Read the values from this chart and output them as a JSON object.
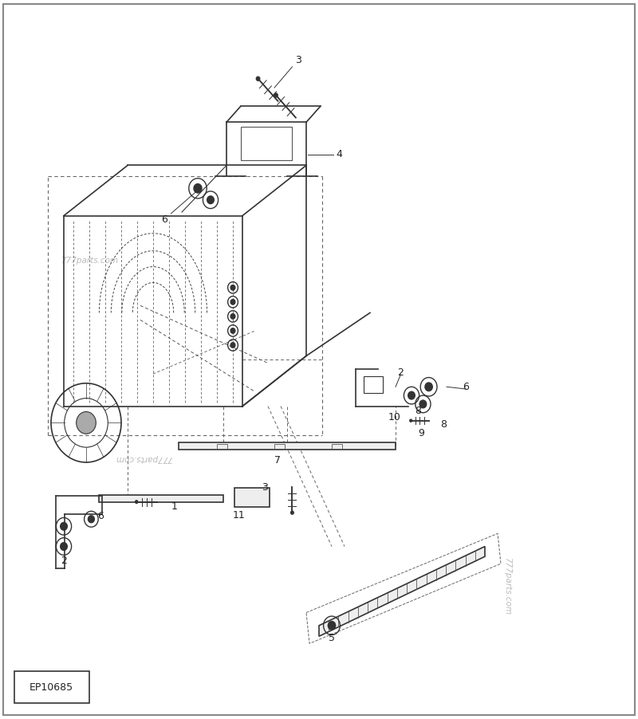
{
  "bg_color": "#ffffff",
  "line_color": "#333333",
  "part_number": "EP10685",
  "watermark1": "777parts.com",
  "watermark2": "777parts.com",
  "watermark3": "777parts.com"
}
